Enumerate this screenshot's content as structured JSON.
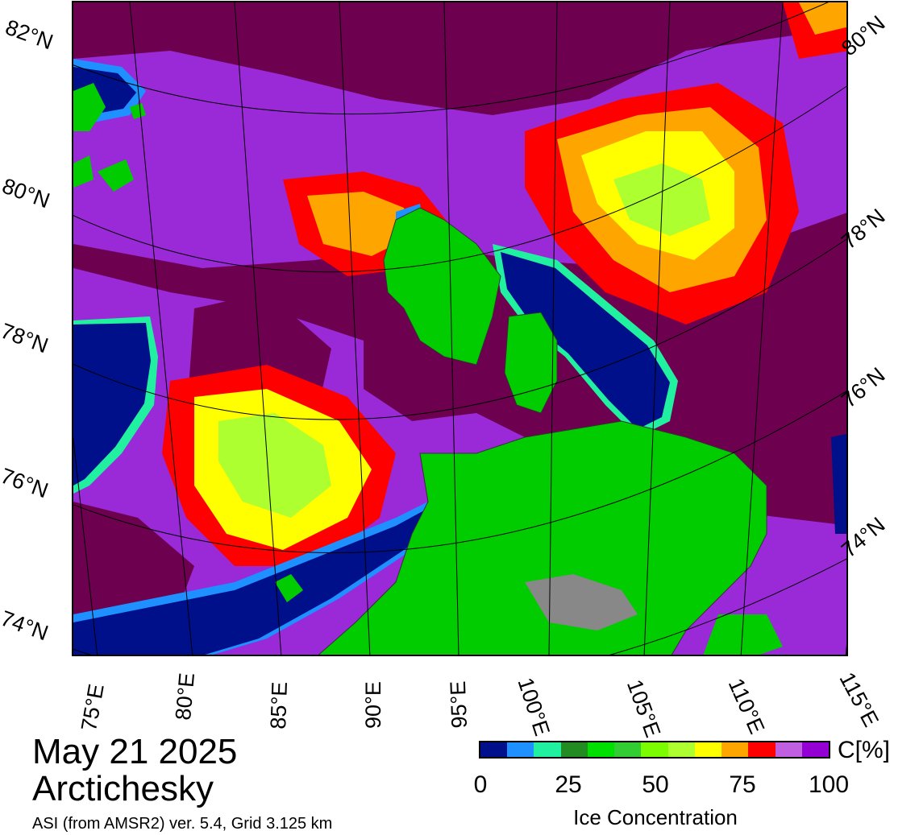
{
  "title": {
    "date": "May 21 2025",
    "region": "Arctichesky",
    "product": "ASI (from AMSR2) ver. 5.4,  Grid 3.125 km"
  },
  "latitude_labels_left": [
    "82°N",
    "80°N",
    "78°N",
    "76°N",
    "74°N"
  ],
  "latitude_labels_right": [
    "80°N",
    "78°N",
    "76°N",
    "74°N"
  ],
  "longitude_labels": [
    "75°E",
    "80°E",
    "85°E",
    "90°E",
    "95°E",
    "100°E",
    "105°E",
    "110°E",
    "115°E"
  ],
  "colorbar": {
    "unit": "C[%]",
    "title": "Ice Concentration",
    "ticks": [
      "0",
      "25",
      "50",
      "75",
      "100"
    ],
    "colors": [
      "#00108a",
      "#1e90ff",
      "#20f0a0",
      "#228b22",
      "#00e000",
      "#32cd32",
      "#7cfc00",
      "#adff2f",
      "#ffff00",
      "#ffa500",
      "#ff0000",
      "#c060e0",
      "#9400d3"
    ]
  },
  "legend_colors": {
    "land": "#00cc00",
    "land_ice": "#888888",
    "open_water": "#00108a",
    "high_concentration": "#6e0050",
    "very_high_concentration": "#9a2ad8"
  }
}
